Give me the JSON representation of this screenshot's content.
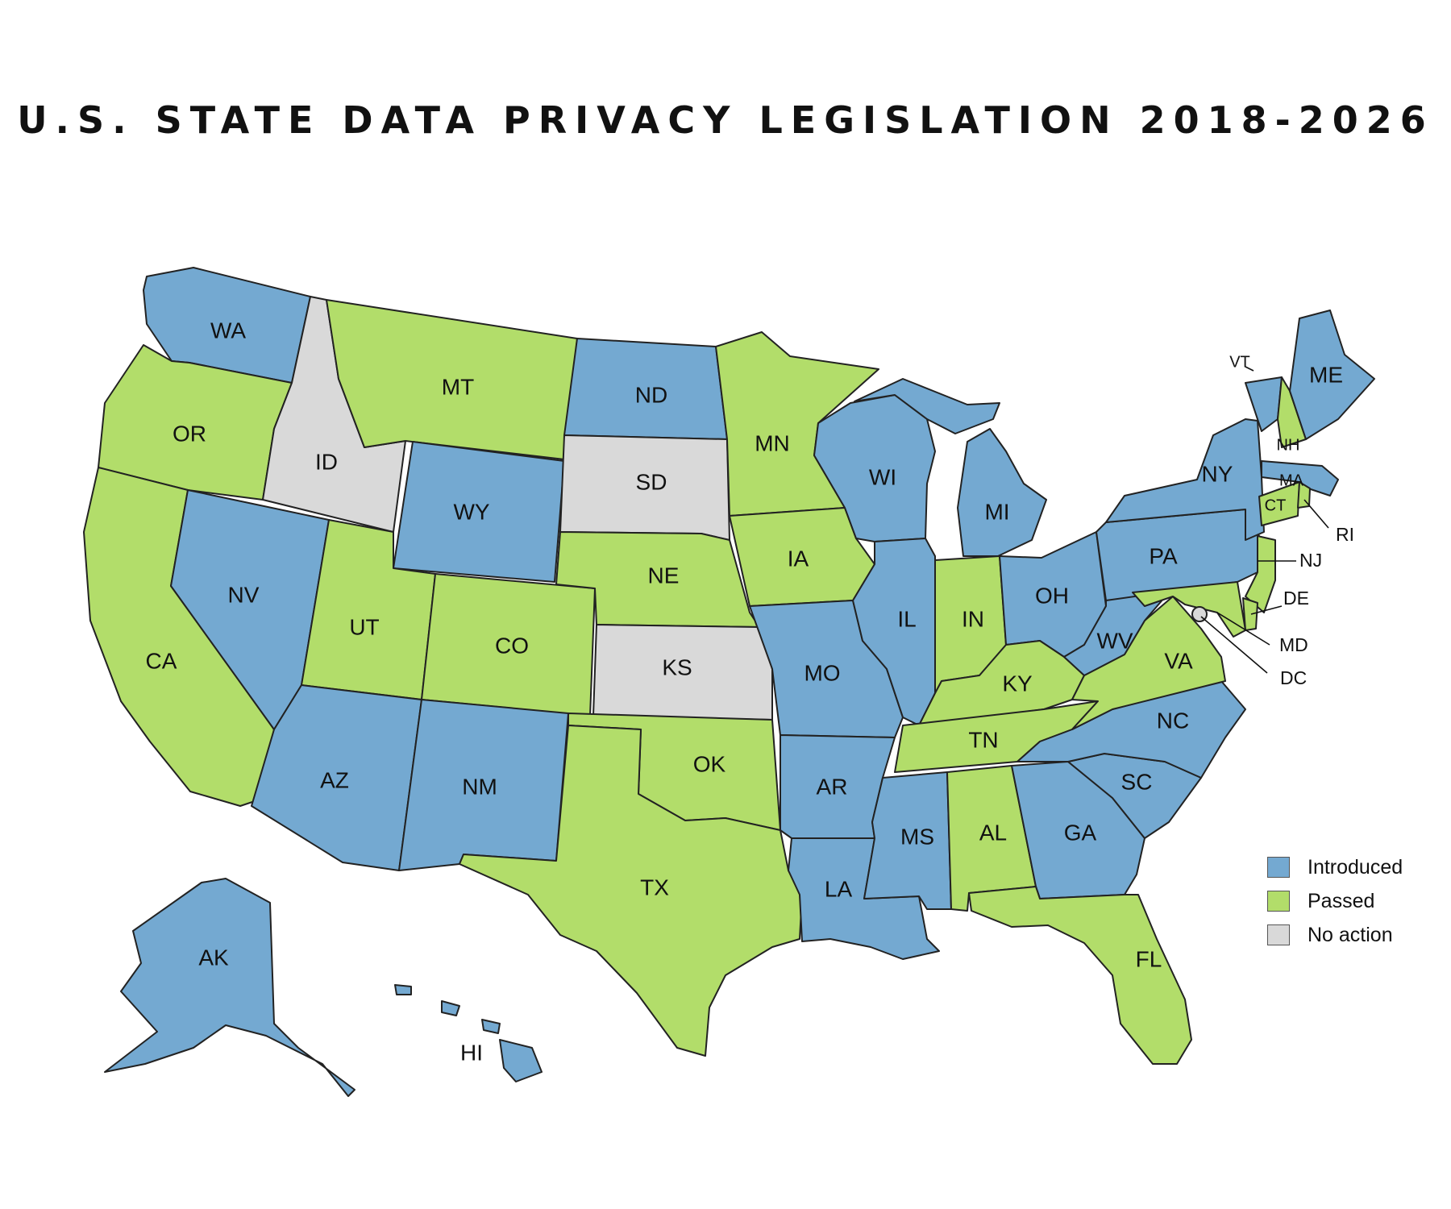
{
  "title": "U.S. STATE DATA PRIVACY LEGISLATION 2018-2026",
  "colors": {
    "introduced": "#74a9d1",
    "passed": "#b2dd6a",
    "no_action": "#d9d9d9",
    "stroke": "#222222"
  },
  "legend": [
    {
      "key": "introduced",
      "label": "Introduced"
    },
    {
      "key": "passed",
      "label": "Passed"
    },
    {
      "key": "no_action",
      "label": "No action"
    }
  ],
  "states": [
    {
      "abbr": "WA",
      "status": "introduced"
    },
    {
      "abbr": "OR",
      "status": "passed"
    },
    {
      "abbr": "CA",
      "status": "passed"
    },
    {
      "abbr": "ID",
      "status": "no_action"
    },
    {
      "abbr": "NV",
      "status": "introduced"
    },
    {
      "abbr": "MT",
      "status": "passed"
    },
    {
      "abbr": "WY",
      "status": "introduced"
    },
    {
      "abbr": "UT",
      "status": "passed"
    },
    {
      "abbr": "CO",
      "status": "passed"
    },
    {
      "abbr": "AZ",
      "status": "introduced"
    },
    {
      "abbr": "NM",
      "status": "introduced"
    },
    {
      "abbr": "ND",
      "status": "introduced"
    },
    {
      "abbr": "SD",
      "status": "no_action"
    },
    {
      "abbr": "NE",
      "status": "passed"
    },
    {
      "abbr": "KS",
      "status": "no_action"
    },
    {
      "abbr": "OK",
      "status": "passed"
    },
    {
      "abbr": "TX",
      "status": "passed"
    },
    {
      "abbr": "MN",
      "status": "passed"
    },
    {
      "abbr": "IA",
      "status": "passed"
    },
    {
      "abbr": "MO",
      "status": "introduced"
    },
    {
      "abbr": "AR",
      "status": "introduced"
    },
    {
      "abbr": "LA",
      "status": "introduced"
    },
    {
      "abbr": "WI",
      "status": "introduced"
    },
    {
      "abbr": "IL",
      "status": "introduced"
    },
    {
      "abbr": "MI",
      "status": "introduced"
    },
    {
      "abbr": "IN",
      "status": "passed"
    },
    {
      "abbr": "OH",
      "status": "introduced"
    },
    {
      "abbr": "KY",
      "status": "passed"
    },
    {
      "abbr": "TN",
      "status": "passed"
    },
    {
      "abbr": "MS",
      "status": "introduced"
    },
    {
      "abbr": "AL",
      "status": "passed"
    },
    {
      "abbr": "GA",
      "status": "introduced"
    },
    {
      "abbr": "FL",
      "status": "passed"
    },
    {
      "abbr": "SC",
      "status": "introduced"
    },
    {
      "abbr": "NC",
      "status": "introduced"
    },
    {
      "abbr": "VA",
      "status": "passed"
    },
    {
      "abbr": "WV",
      "status": "introduced"
    },
    {
      "abbr": "PA",
      "status": "introduced"
    },
    {
      "abbr": "NY",
      "status": "introduced"
    },
    {
      "abbr": "VT",
      "status": "introduced"
    },
    {
      "abbr": "NH",
      "status": "passed"
    },
    {
      "abbr": "ME",
      "status": "introduced"
    },
    {
      "abbr": "MA",
      "status": "introduced"
    },
    {
      "abbr": "CT",
      "status": "passed"
    },
    {
      "abbr": "RI",
      "status": "passed"
    },
    {
      "abbr": "NJ",
      "status": "passed"
    },
    {
      "abbr": "DE",
      "status": "passed"
    },
    {
      "abbr": "MD",
      "status": "passed"
    },
    {
      "abbr": "DC",
      "status": "no_action"
    },
    {
      "abbr": "AK",
      "status": "introduced"
    },
    {
      "abbr": "HI",
      "status": "introduced"
    }
  ]
}
